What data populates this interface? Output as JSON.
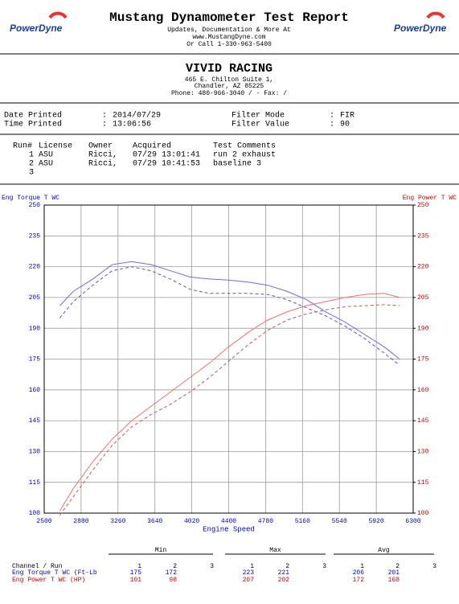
{
  "header": {
    "logo": "PowerDyne",
    "title": "Mustang Dynamometer Test Report",
    "lines": [
      "Updates, Documentation & More At",
      "www.MustangDyne.com",
      "Or Call 1-330-963-5400"
    ]
  },
  "shop": {
    "name": "VIVID RACING",
    "lines": [
      "465 E. Chilton Suite 1,",
      "Chandler, AZ  85225",
      "Phone: 480-966-3040 /  - Fax:  /"
    ]
  },
  "info": {
    "separator": ":",
    "fields": [
      {
        "label": "Date Printed",
        "value": "2014/07/29"
      },
      {
        "label": "Time Printed",
        "value": "13:06:56"
      },
      {
        "label": "Filter Mode",
        "value": "FIR"
      },
      {
        "label": "Filter Value",
        "value": "90"
      }
    ]
  },
  "runs": {
    "columns": [
      "Run#",
      "License",
      "Owner",
      "Acquired",
      "Test Comments"
    ],
    "rows": [
      [
        "1",
        "ASU",
        "Ricci,",
        "07/29 13:01:41",
        "run 2 exhaust"
      ],
      [
        "2",
        "ASU",
        "Ricci,",
        "07/29 10:41:53",
        "baseline 3"
      ],
      [
        "3",
        null,
        null,
        null,
        null
      ]
    ]
  },
  "chart_data": {
    "type": "line",
    "y_label": "Eng Torque T WC",
    "y2_label": "Eng Power T WC",
    "x_label": "Engine Speed",
    "y_color": "#0000cc",
    "y2_color": "#cc0000",
    "grid": true,
    "xlim": [
      2500,
      6300
    ],
    "xticks": [
      2500,
      2880,
      3260,
      3640,
      4020,
      4400,
      4780,
      5160,
      5540,
      5920,
      6300
    ],
    "ylim": [
      100,
      250
    ],
    "yticks": [
      100,
      115,
      130,
      145,
      160,
      175,
      190,
      205,
      220,
      235,
      250
    ],
    "y2lim": [
      100,
      250
    ],
    "y2ticks": [
      100,
      115,
      130,
      145,
      160,
      175,
      190,
      205,
      220,
      235,
      250
    ],
    "x": [
      2660,
      2800,
      3000,
      3200,
      3400,
      3600,
      3800,
      4000,
      4200,
      4400,
      4600,
      4800,
      5000,
      5200,
      5400,
      5600,
      5800,
      6000,
      6160
    ],
    "series": [
      {
        "color": "#6b6bf0",
        "dashed": false,
        "values": [
          201,
          208,
          214,
          221,
          222.5,
          221,
          218,
          215,
          214,
          213.5,
          212.5,
          211,
          208,
          204,
          198,
          193,
          187,
          181,
          175
        ]
      },
      {
        "color": "#5a5aa8",
        "dashed": true,
        "values": [
          195,
          203,
          211,
          218,
          220,
          218,
          214,
          209,
          207,
          207,
          207,
          206.5,
          204,
          200,
          196,
          191,
          185,
          178,
          172
        ]
      },
      {
        "color": "#f07070",
        "dashed": false,
        "axis": "y2",
        "values": [
          101,
          112,
          125,
          136,
          145,
          152,
          159,
          166,
          173,
          181,
          188,
          194,
          198,
          201,
          203,
          205,
          206.5,
          207,
          205
        ]
      },
      {
        "color": "#b06060",
        "dashed": true,
        "axis": "y2",
        "values": [
          99,
          108,
          121,
          133,
          142,
          148,
          153,
          159,
          166,
          174,
          182,
          189,
          194,
          197,
          199,
          200.5,
          201,
          201.5,
          201
        ]
      }
    ]
  },
  "summary": {
    "channel_header": "Channel / Run",
    "groups": [
      "Min",
      "Max",
      "Avg"
    ],
    "runs": [
      "1",
      "2",
      "3"
    ],
    "rows": [
      {
        "channel": "Eng Torque T WC (Ft-Lb",
        "color": "#0000cc",
        "values": [
          [
            175,
            172,
            null
          ],
          [
            223,
            221,
            null
          ],
          [
            206,
            201,
            null
          ]
        ]
      },
      {
        "channel": "Eng Power T WC (HP)",
        "color": "#cc0000",
        "values": [
          [
            101,
            98,
            null
          ],
          [
            207,
            202,
            null
          ],
          [
            172,
            168,
            null
          ]
        ]
      }
    ]
  }
}
